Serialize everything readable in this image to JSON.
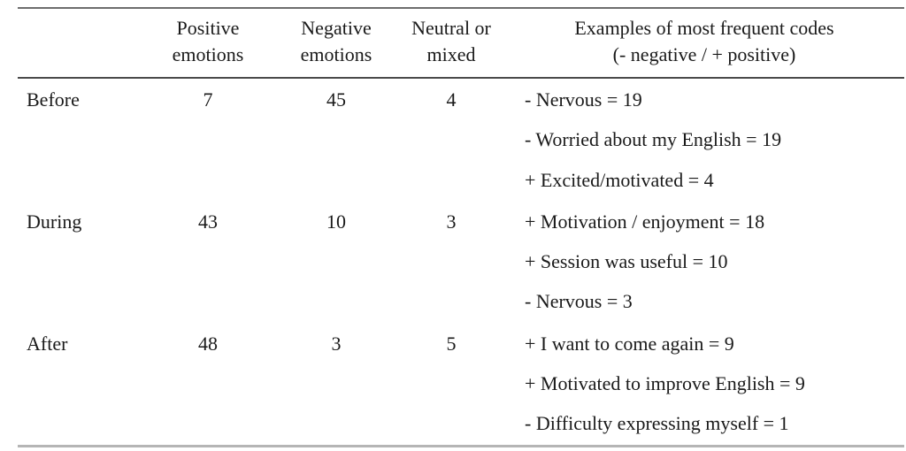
{
  "header": {
    "cols": [
      {
        "line1": "Positive",
        "line2": "emotions"
      },
      {
        "line1": "Negative",
        "line2": "emotions"
      },
      {
        "line1": "Neutral or",
        "line2": "mixed"
      },
      {
        "line1": "Examples of most frequent codes",
        "line2": "(- negative / + positive)"
      }
    ]
  },
  "rows": [
    {
      "phase": "Before",
      "positive": "7",
      "negative": "45",
      "neutral": "4",
      "examples": [
        "- Nervous = 19",
        "- Worried about my English = 19",
        "+ Excited/motivated = 4"
      ]
    },
    {
      "phase": "During",
      "positive": "43",
      "negative": "10",
      "neutral": "3",
      "examples": [
        "+ Motivation / enjoyment = 18",
        "+ Session was useful = 10",
        "- Nervous = 3"
      ]
    },
    {
      "phase": "After",
      "positive": "48",
      "negative": "3",
      "neutral": "5",
      "examples": [
        "+ I want to come again = 9",
        "+ Motivated to improve English = 9",
        "- Difficulty expressing myself = 1"
      ]
    }
  ],
  "chart_data": {
    "type": "table",
    "title": "",
    "categories": [
      "Before",
      "During",
      "After"
    ],
    "series": [
      {
        "name": "Positive emotions",
        "values": [
          7,
          43,
          48
        ]
      },
      {
        "name": "Negative emotions",
        "values": [
          45,
          10,
          3
        ]
      },
      {
        "name": "Neutral or mixed",
        "values": [
          4,
          3,
          5
        ]
      }
    ],
    "example_codes": {
      "Before": [
        "- Nervous = 19",
        "- Worried about my English = 19",
        "+ Excited/motivated = 4"
      ],
      "During": [
        "+ Motivation / enjoyment = 18",
        "+ Session was useful = 10",
        "- Nervous = 3"
      ],
      "After": [
        "+ I want to come again = 9",
        "+ Motivated to improve English = 9",
        "- Difficulty expressing myself = 1"
      ]
    }
  }
}
